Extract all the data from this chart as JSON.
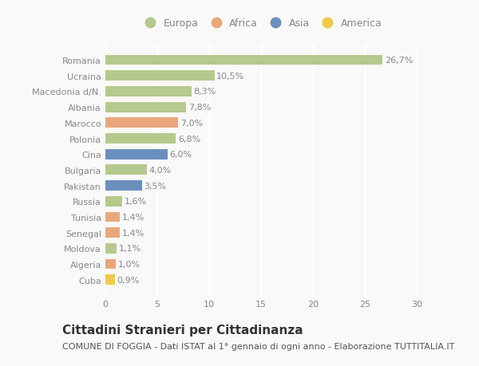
{
  "countries": [
    "Romania",
    "Ucraina",
    "Macedonia d/N.",
    "Albania",
    "Marocco",
    "Polonia",
    "Cina",
    "Bulgaria",
    "Pakistan",
    "Russia",
    "Tunisia",
    "Senegal",
    "Moldova",
    "Algeria",
    "Cuba"
  ],
  "values": [
    26.7,
    10.5,
    8.3,
    7.8,
    7.0,
    6.8,
    6.0,
    4.0,
    3.5,
    1.6,
    1.4,
    1.4,
    1.1,
    1.0,
    0.9
  ],
  "labels": [
    "26,7%",
    "10,5%",
    "8,3%",
    "7,8%",
    "7,0%",
    "6,8%",
    "6,0%",
    "4,0%",
    "3,5%",
    "1,6%",
    "1,4%",
    "1,4%",
    "1,1%",
    "1,0%",
    "0,9%"
  ],
  "continents": [
    "Europa",
    "Europa",
    "Europa",
    "Europa",
    "Africa",
    "Europa",
    "Asia",
    "Europa",
    "Asia",
    "Europa",
    "Africa",
    "Africa",
    "Europa",
    "Africa",
    "America"
  ],
  "continent_colors": {
    "Europa": "#b5c98e",
    "Africa": "#e8a87c",
    "Asia": "#6a8fbc",
    "America": "#f0c84e"
  },
  "legend_order": [
    "Europa",
    "Africa",
    "Asia",
    "America"
  ],
  "title": "Cittadini Stranieri per Cittadinanza",
  "subtitle": "COMUNE DI FOGGIA - Dati ISTAT al 1° gennaio di ogni anno - Elaborazione TUTTITALIA.IT",
  "xlim": [
    0,
    30
  ],
  "xticks": [
    0,
    5,
    10,
    15,
    20,
    25,
    30
  ],
  "background_color": "#f9f9f9",
  "plot_bg_color": "#f9f9f9",
  "grid_color": "#ffffff",
  "bar_height": 0.65,
  "title_fontsize": 11,
  "subtitle_fontsize": 8,
  "label_fontsize": 8,
  "tick_fontsize": 8,
  "legend_fontsize": 9,
  "text_color": "#888888",
  "title_color": "#333333",
  "subtitle_color": "#555555"
}
